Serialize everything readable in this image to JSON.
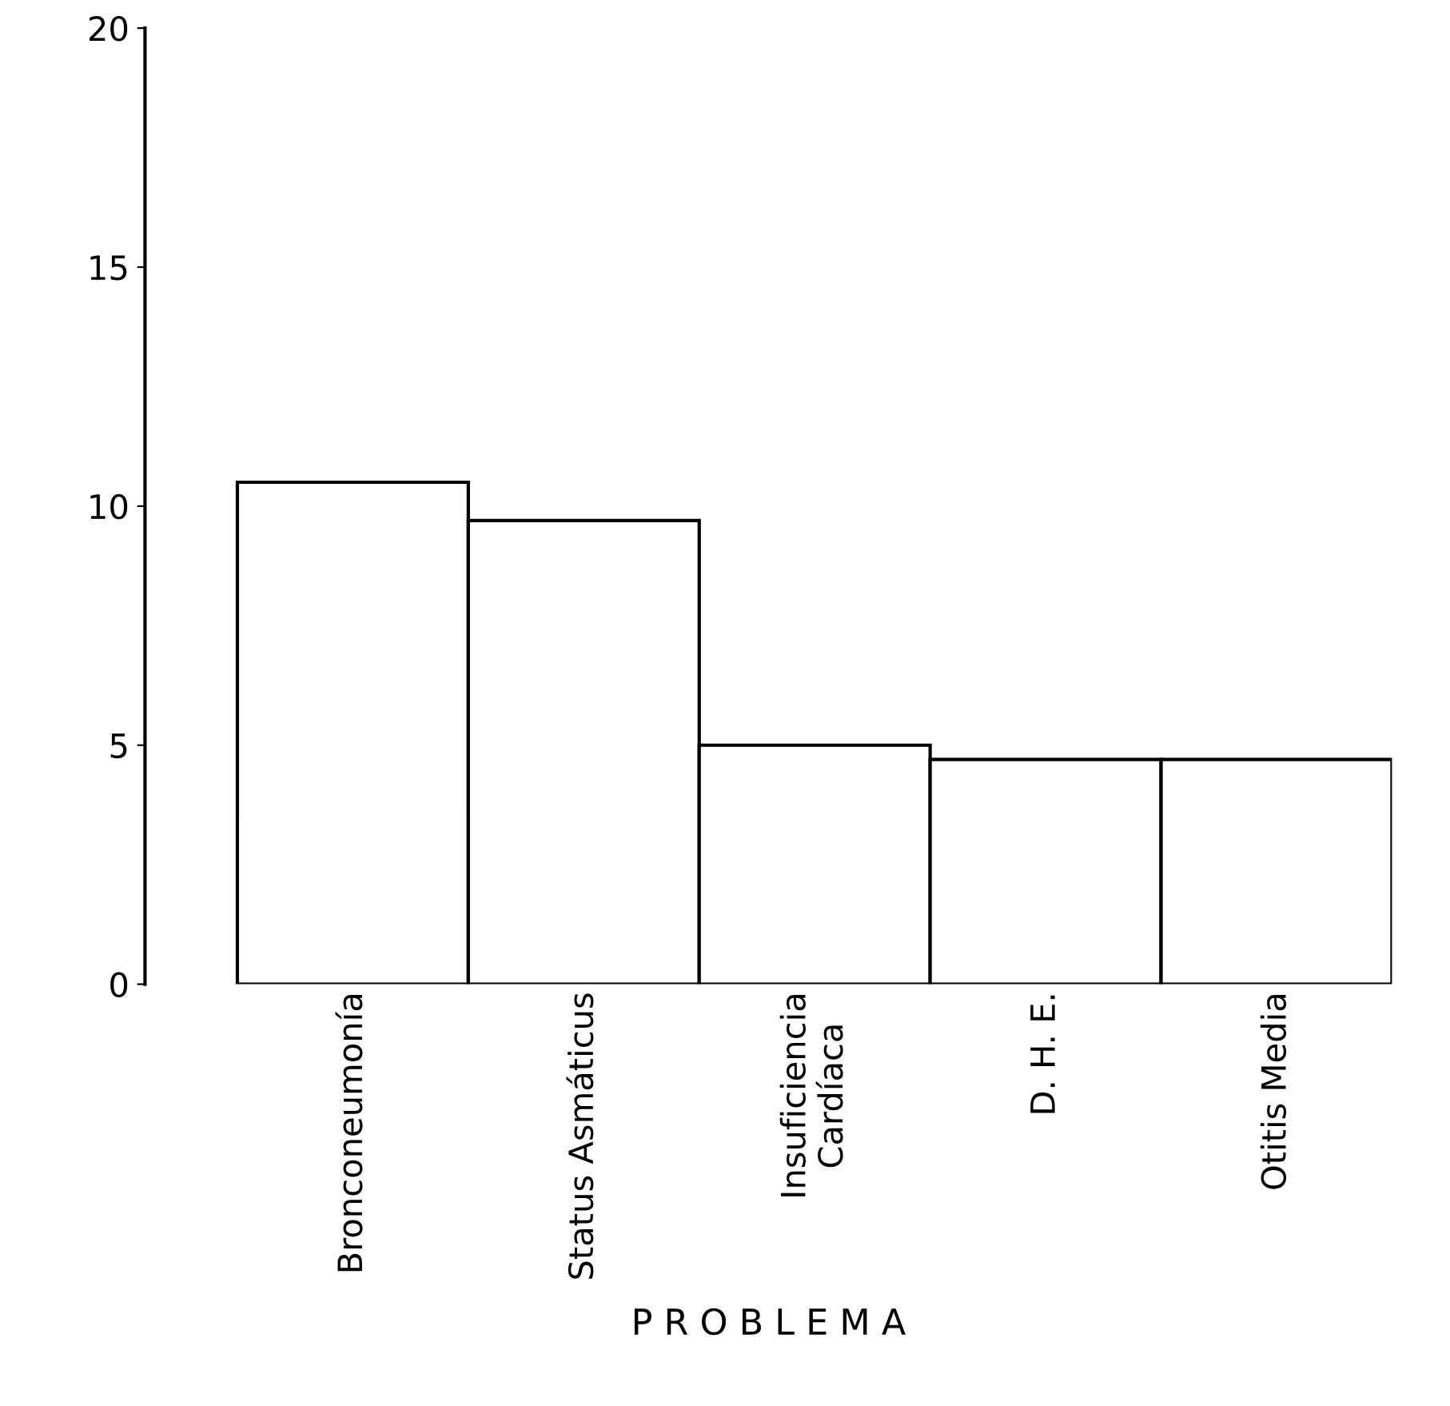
{
  "chart_data": {
    "type": "bar",
    "xlabel": "P R O B L E M A",
    "categories": [
      "Bronconeumonía",
      "Status Asmáticus",
      "Insuficiencia\nCardíaca",
      "D. H. E.",
      "Otitis Media"
    ],
    "values": [
      10.5,
      9.7,
      5.0,
      4.7,
      4.7
    ],
    "color": "#ffffff",
    "ylim": [
      0,
      20
    ],
    "yticks": [
      0,
      5,
      10,
      15,
      20
    ],
    "grid": false
  }
}
